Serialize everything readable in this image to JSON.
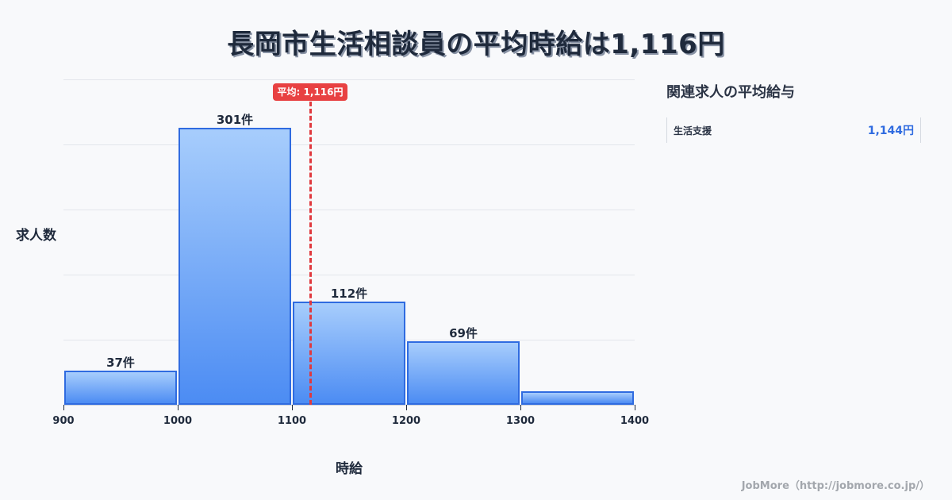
{
  "title": "長岡市生活相談員の平均時給は1,116円",
  "chart_data": {
    "type": "bar",
    "subtype": "histogram",
    "title": "長岡市生活相談員の平均時給は1,116円",
    "xlabel": "時給",
    "ylabel": "求人数",
    "bins": [
      [
        900,
        1000
      ],
      [
        1000,
        1100
      ],
      [
        1100,
        1200
      ],
      [
        1200,
        1300
      ],
      [
        1300,
        1400
      ]
    ],
    "categories": [
      "900-1000",
      "1000-1100",
      "1100-1200",
      "1200-1300",
      "1300-1400"
    ],
    "values": [
      37,
      301,
      112,
      69,
      15
    ],
    "value_labels": [
      "37件",
      "301件",
      "112件",
      "69件",
      ""
    ],
    "x_ticks": [
      "900",
      "1000",
      "1100",
      "1200",
      "1300",
      "1400"
    ],
    "xlim": [
      900,
      1400
    ],
    "ylim": [
      0,
      355
    ],
    "grid": true,
    "mean": 1116,
    "mean_label": "平均: 1,116円",
    "bar_color": "#4c8cf3",
    "mean_color": "#e84142"
  },
  "sidebar": {
    "title": "関連求人の平均給与",
    "items": [
      {
        "name": "生活支援",
        "value": "1,144円"
      }
    ]
  },
  "footer": "JobMore（http://jobmore.co.jp/）"
}
